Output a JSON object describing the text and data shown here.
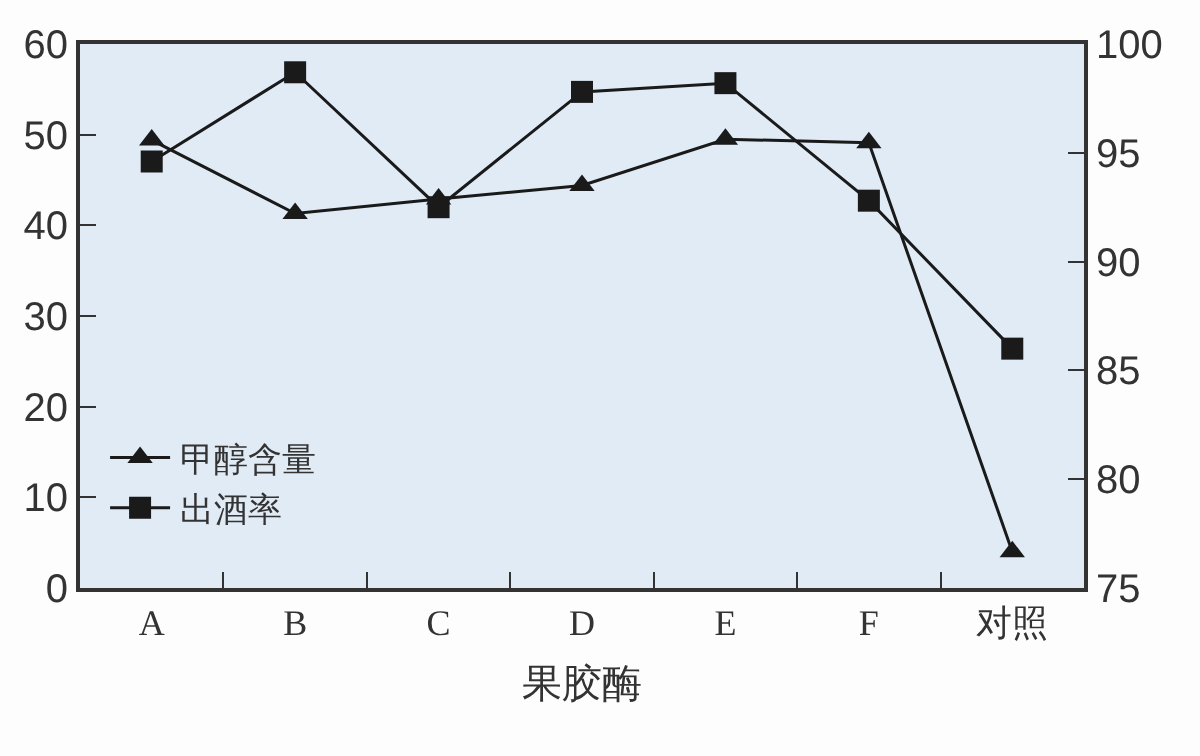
{
  "chart_data": {
    "type": "line",
    "xlabel": "果胶酶",
    "categories": [
      "A",
      "B",
      "C",
      "D",
      "E",
      "F",
      "对照"
    ],
    "series": [
      {
        "name": "甲醇含量",
        "color": "#1a1a1a",
        "marker": "triangle",
        "values": [
          49.4,
          41.3,
          42.9,
          44.4,
          49.5,
          49.1,
          4.0
        ]
      },
      {
        "name": "出酒率",
        "color": "#1a1a1a",
        "marker": "square",
        "axis": "y2",
        "values": [
          94.6,
          98.7,
          92.5,
          97.8,
          98.2,
          92.8,
          86.0
        ]
      }
    ],
    "ylim": [
      0,
      60
    ],
    "yticks": [
      0,
      10,
      20,
      30,
      40,
      50,
      60
    ],
    "y2lim": [
      75,
      100
    ],
    "y2ticks": [
      75,
      80,
      85,
      90,
      95,
      100
    ],
    "grid": false,
    "legend": "bottom left",
    "line_style": "solid"
  }
}
